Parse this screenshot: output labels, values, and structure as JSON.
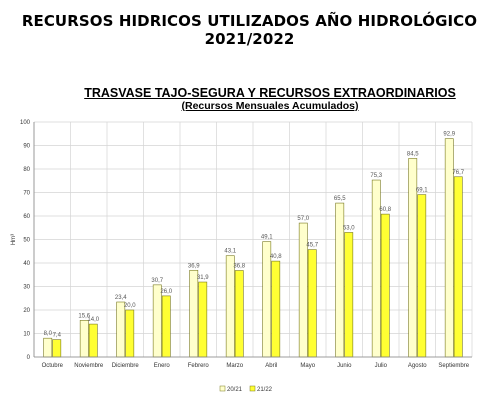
{
  "page_title": "RECURSOS HIDRICOS UTILIZADOS AÑO HIDROLÓGICO 2021/2022",
  "chart_data": {
    "type": "bar",
    "title": "TRASVASE TAJO-SEGURA Y RECURSOS EXTRAORDINARIOS",
    "subtitle": "(Recursos Mensuales Acumulados)",
    "ylabel": "Hm³",
    "xlabel": "",
    "ylim": [
      0,
      100
    ],
    "yticks": [
      0,
      10,
      20,
      30,
      40,
      50,
      60,
      70,
      80,
      90,
      100
    ],
    "grid": true,
    "legend_position": "bottom-center",
    "categories": [
      "Octubre",
      "Noviembre",
      "Diciembre",
      "Enero",
      "Febrero",
      "Marzo",
      "Abril",
      "Mayo",
      "Junio",
      "Julio",
      "Agosto",
      "Septiembre"
    ],
    "series": [
      {
        "name": "20/21",
        "color": "#FFFFCC",
        "values": [
          8.0,
          15.6,
          23.4,
          30.7,
          36.9,
          43.1,
          49.1,
          57.0,
          65.5,
          75.3,
          84.5,
          92.9
        ],
        "labels": [
          "8,0",
          "15,6",
          "23,4",
          "30,7",
          "36,9",
          "43,1",
          "49,1",
          "57,0",
          "65,5",
          "75,3",
          "84,5",
          "92,9"
        ]
      },
      {
        "name": "21/22",
        "color": "#FFFF33",
        "values": [
          7.4,
          14.0,
          20.0,
          26.0,
          31.9,
          36.8,
          40.8,
          45.7,
          53.0,
          60.8,
          69.1,
          76.7
        ],
        "labels": [
          "7,4",
          "14,0",
          "20,0",
          "26,0",
          "31,9",
          "36,8",
          "40,8",
          "45,7",
          "53,0",
          "60,8",
          "69,1",
          "76,7"
        ]
      }
    ]
  }
}
